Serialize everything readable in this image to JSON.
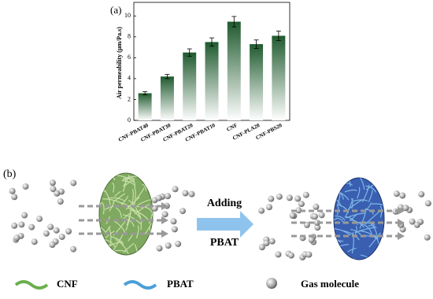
{
  "chart_data": {
    "type": "bar",
    "title": "(a)",
    "ylabel": "Air permeability (μm/Pa.s)",
    "categories": [
      "CNF-PBAT40",
      "CNF-PBAT30",
      "CNF-PBAT20",
      "CNF-PBAT10",
      "CNF",
      "CNF-PLA20",
      "CNF-PBS20"
    ],
    "values": [
      2.6,
      4.2,
      6.5,
      7.5,
      9.45,
      7.3,
      8.1
    ],
    "errors": [
      0.15,
      0.2,
      0.35,
      0.4,
      0.5,
      0.4,
      0.45
    ],
    "color": "#1f5a2e",
    "ylim": [
      0,
      11.3
    ],
    "yticks": [
      0,
      2,
      4,
      6,
      8,
      10
    ]
  },
  "diagram": {
    "label": "(b)",
    "arrow_text": [
      "Adding",
      "PBAT"
    ],
    "legend": [
      "CNF",
      "PBAT",
      "Gas molecule"
    ]
  }
}
